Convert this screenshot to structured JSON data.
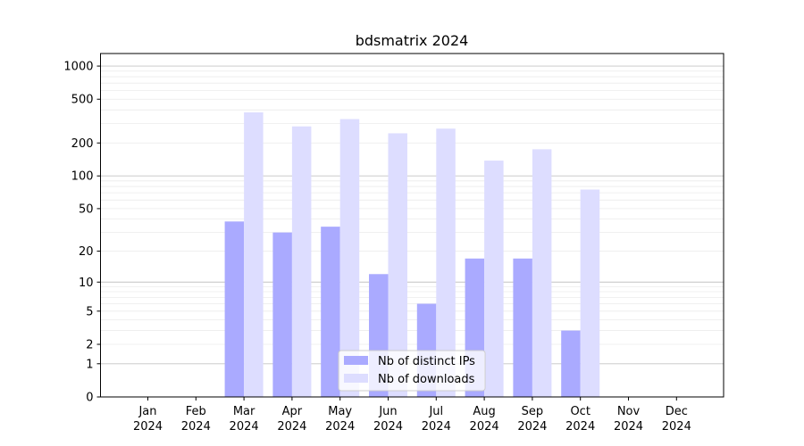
{
  "chart_data": {
    "type": "bar",
    "title": "bdsmatrix 2024",
    "xlabel": "",
    "ylabel": "",
    "yscale": "log1p",
    "ylim": [
      0,
      1300
    ],
    "yticks": [
      0,
      1,
      2,
      5,
      10,
      20,
      50,
      100,
      200,
      500,
      1000
    ],
    "grid": "y-major-and-minor",
    "legend_position": "bottom-center",
    "categories": [
      [
        "Jan",
        "2024"
      ],
      [
        "Feb",
        "2024"
      ],
      [
        "Mar",
        "2024"
      ],
      [
        "Apr",
        "2024"
      ],
      [
        "May",
        "2024"
      ],
      [
        "Jun",
        "2024"
      ],
      [
        "Jul",
        "2024"
      ],
      [
        "Aug",
        "2024"
      ],
      [
        "Sep",
        "2024"
      ],
      [
        "Oct",
        "2024"
      ],
      [
        "Nov",
        "2024"
      ],
      [
        "Dec",
        "2024"
      ]
    ],
    "series": [
      {
        "name": "Nb of distinct IPs",
        "color": "#aaaaff",
        "values": [
          0,
          0,
          38,
          30,
          34,
          12,
          6,
          17,
          17,
          3,
          0,
          0
        ]
      },
      {
        "name": "Nb of downloads",
        "color": "#ddddff",
        "values": [
          0,
          0,
          380,
          283,
          330,
          245,
          270,
          138,
          175,
          75,
          0,
          0
        ]
      }
    ]
  }
}
